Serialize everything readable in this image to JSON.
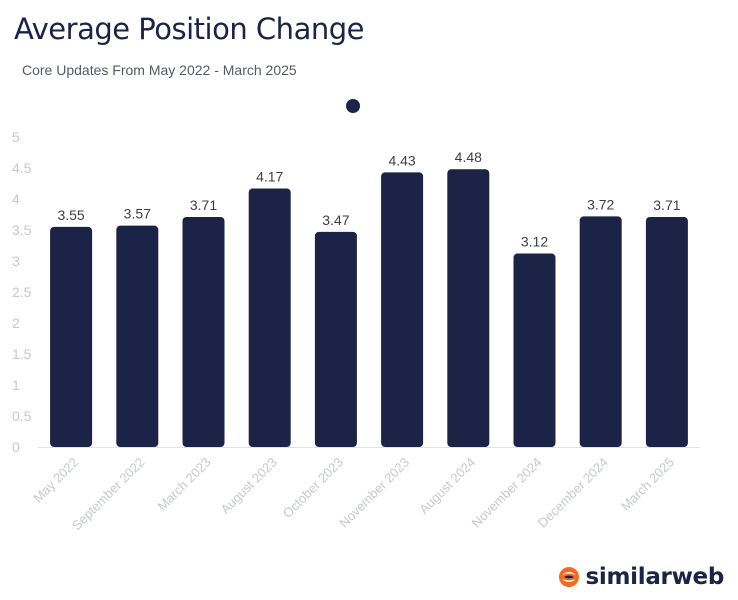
{
  "chart_data": {
    "type": "bar",
    "title": "Average Position Change",
    "subtitle": "Core Updates From May 2022 - March 2025",
    "categories": [
      "May 2022",
      "September 2022",
      "March 2023",
      "August 2023",
      "October 2023",
      "November 2023",
      "August 2024",
      "November 2024",
      "December 2024",
      "March 2025"
    ],
    "values": [
      3.55,
      3.57,
      3.71,
      4.17,
      3.47,
      4.43,
      4.48,
      3.12,
      3.72,
      3.71
    ],
    "y_ticks": [
      "0",
      "0.5",
      "1",
      "1.5",
      "2",
      "2.5",
      "3",
      "3.5",
      "4",
      "4.5",
      "5"
    ],
    "ylim": [
      0,
      5
    ],
    "bar_color": "#1b2446",
    "grid": false,
    "legend": "marker only, top-center"
  },
  "logo": {
    "text": "similarweb",
    "icon": "similarweb-logo-icon",
    "accent": "#f26a21"
  }
}
